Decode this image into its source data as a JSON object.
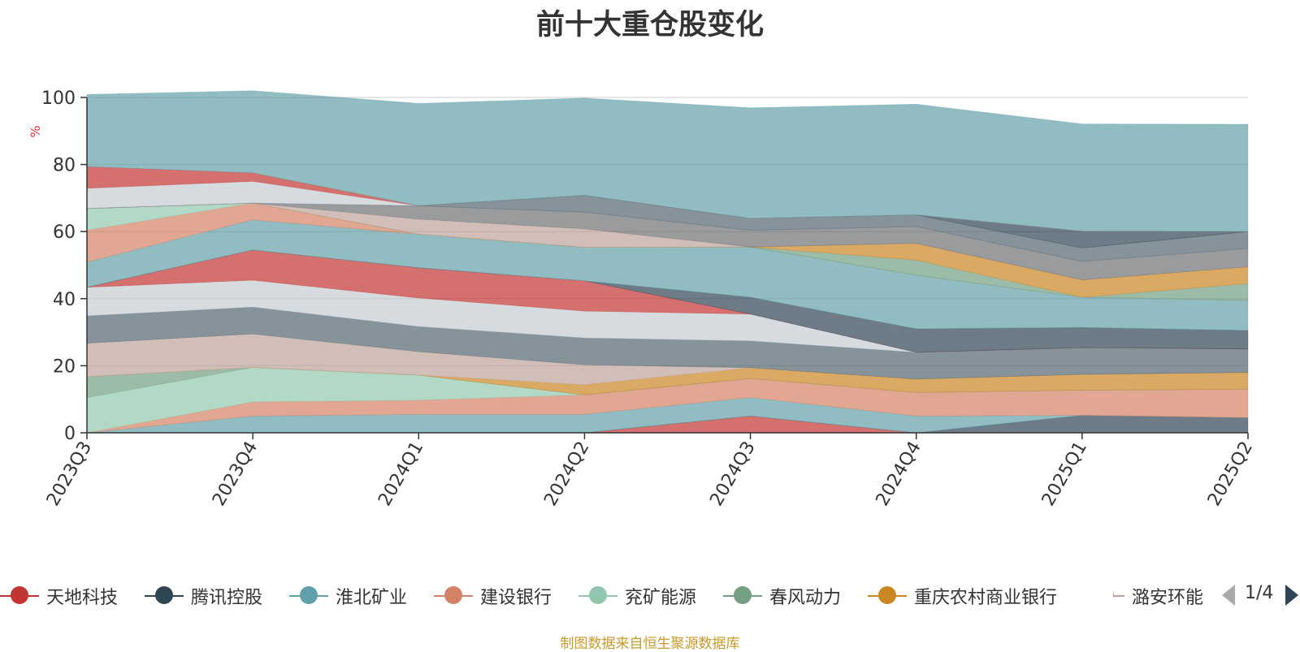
{
  "title": "前十大重仓股变化",
  "source": "制图数据来自恒生聚源数据库",
  "pager": {
    "label": "1/4",
    "prev": "prev-page",
    "next": "next-page"
  },
  "legend": [
    {
      "name": "天地科技",
      "color": "#c23531"
    },
    {
      "name": "腾讯控股",
      "color": "#2f4554"
    },
    {
      "name": "淮北矿业",
      "color": "#61a0a8"
    },
    {
      "name": "建设银行",
      "color": "#d48265"
    },
    {
      "name": "兖矿能源",
      "color": "#91c7ae"
    },
    {
      "name": "春风动力",
      "color": "#749f83"
    },
    {
      "name": "重庆农村商业银行",
      "color": "#ca8622"
    },
    {
      "name": "潞安环能",
      "color": "#bda29a"
    }
  ],
  "chart_data": {
    "type": "area",
    "stacked": true,
    "categories": [
      "2023Q3",
      "2023Q4",
      "2024Q1",
      "2024Q2",
      "2024Q3",
      "2024Q4",
      "2025Q1",
      "2025Q2"
    ],
    "ylabel": "%",
    "ylim": [
      0,
      100
    ],
    "yticks": [
      0,
      20,
      40,
      60,
      80,
      100
    ],
    "grid": true,
    "bands": [
      {
        "color": "#c23531",
        "values": [
          0,
          0,
          0,
          0,
          5,
          0,
          0,
          0
        ]
      },
      {
        "color": "#2f4554",
        "values": [
          0,
          0,
          0,
          0,
          0,
          0,
          5.2,
          4.5
        ]
      },
      {
        "color": "#61a0a8",
        "values": [
          0,
          5,
          5.5,
          5.5,
          5.5,
          5,
          0,
          0
        ]
      },
      {
        "color": "#d48265",
        "values": [
          0,
          4.2,
          4.2,
          5.8,
          5.7,
          7,
          7.5,
          8.5
        ]
      },
      {
        "color": "#91c7ae",
        "values": [
          10.5,
          10.3,
          7.5,
          0,
          0,
          0,
          0,
          0
        ]
      },
      {
        "color": "#749f83",
        "values": [
          6.2,
          0,
          0,
          0,
          0,
          0,
          0,
          0
        ]
      },
      {
        "color": "#ca8622",
        "values": [
          0,
          0,
          0,
          3,
          3.2,
          4,
          4.7,
          5
        ]
      },
      {
        "color": "#bda29a",
        "values": [
          10,
          10,
          7,
          6,
          0,
          0,
          0,
          0
        ]
      },
      {
        "color": "#546570",
        "values": [
          8.2,
          8,
          7.5,
          8,
          8,
          8,
          8,
          7
        ]
      },
      {
        "color": "#c4ccd3",
        "values": [
          8.5,
          8,
          8.5,
          8,
          8,
          0,
          0,
          0
        ]
      },
      {
        "color": "#c23531",
        "values": [
          0,
          9,
          9,
          9,
          0,
          0,
          0,
          0
        ]
      },
      {
        "color": "#2f4554",
        "values": [
          0,
          0,
          0,
          0,
          5,
          7,
          6,
          5.5
        ]
      },
      {
        "color": "#61a0a8",
        "values": [
          7.5,
          9,
          10,
          10,
          15,
          16,
          9,
          9
        ]
      },
      {
        "color": "#d48265",
        "values": [
          9.5,
          5,
          0,
          0,
          0,
          0,
          0,
          0
        ]
      },
      {
        "color": "#91c7ae",
        "values": [
          6.5,
          0,
          0,
          0,
          0,
          0,
          0,
          0
        ]
      },
      {
        "color": "#749f83",
        "values": [
          0,
          0,
          0,
          0,
          0,
          4.5,
          0,
          5
        ]
      },
      {
        "color": "#ca8622",
        "values": [
          0,
          0,
          0,
          0,
          0,
          5,
          5.2,
          5
        ]
      },
      {
        "color": "#bda29a",
        "values": [
          0,
          0,
          4.5,
          5.5,
          0,
          0,
          0,
          0
        ]
      },
      {
        "color": "#6e7074",
        "values": [
          0,
          0,
          4,
          5,
          5,
          5,
          5.5,
          5.5
        ]
      },
      {
        "color": "#546570",
        "values": [
          0,
          0,
          0,
          5,
          3.5,
          3.5,
          4,
          5
        ]
      },
      {
        "color": "#2f4554",
        "values": [
          0,
          0,
          0,
          0,
          0,
          0,
          5,
          0
        ]
      },
      {
        "color": "#c4ccd3",
        "values": [
          6,
          6.5,
          0,
          0,
          0,
          0,
          0,
          0
        ]
      },
      {
        "color": "#c23531",
        "values": [
          6.5,
          2.5,
          0,
          0,
          0,
          0,
          0,
          0
        ]
      },
      {
        "color": "#61a0a8",
        "values": [
          21.5,
          24.5,
          30.5,
          29,
          33,
          33,
          32,
          32
        ]
      }
    ]
  }
}
